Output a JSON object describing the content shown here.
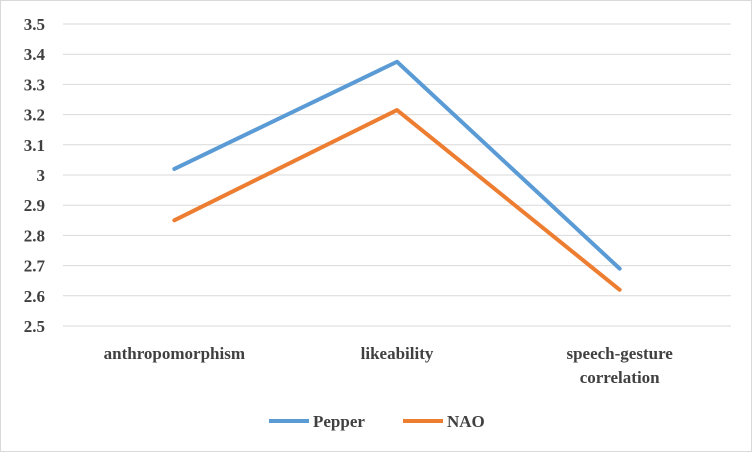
{
  "chart_data": {
    "type": "line",
    "categories": [
      [
        "anthropomorphism"
      ],
      [
        "likeability"
      ],
      [
        "speech-gesture",
        "correlation"
      ]
    ],
    "series": [
      {
        "name": "Pepper",
        "values": [
          3.02,
          3.375,
          2.69
        ],
        "color": "#5B9BD5"
      },
      {
        "name": "NAO",
        "values": [
          2.85,
          3.215,
          2.62
        ],
        "color": "#ED7D31"
      }
    ],
    "ylim": [
      2.5,
      3.5
    ],
    "yticks": [
      "2.5",
      "2.6",
      "2.7",
      "2.8",
      "2.9",
      "3",
      "3.1",
      "3.2",
      "3.3",
      "3.4",
      "3.5"
    ],
    "grid": true,
    "legend": "bottom"
  }
}
